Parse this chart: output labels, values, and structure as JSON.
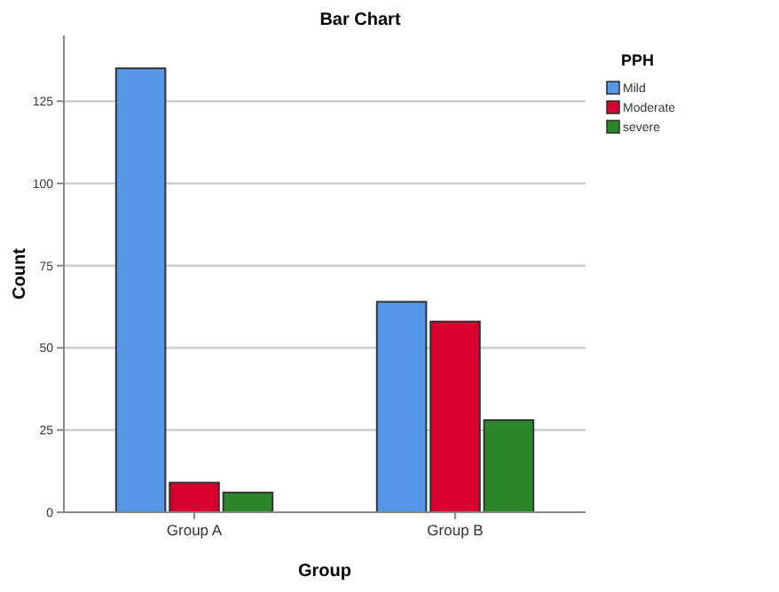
{
  "chart_data": {
    "type": "bar",
    "title": "Bar Chart",
    "xlabel": "Group",
    "ylabel": "Count",
    "legend_title": "PPH",
    "categories": [
      "Group A",
      "Group B"
    ],
    "series": [
      {
        "name": "Mild",
        "color": "#5596e6",
        "values": [
          135,
          64
        ]
      },
      {
        "name": "Moderate",
        "color": "#d6002f",
        "values": [
          9,
          58
        ]
      },
      {
        "name": "severe",
        "color": "#2a872a",
        "values": [
          6,
          28
        ]
      }
    ],
    "ylim": [
      0,
      145
    ],
    "yticks": [
      0,
      25,
      50,
      75,
      100,
      125
    ],
    "grid": "y",
    "legend": "right"
  }
}
